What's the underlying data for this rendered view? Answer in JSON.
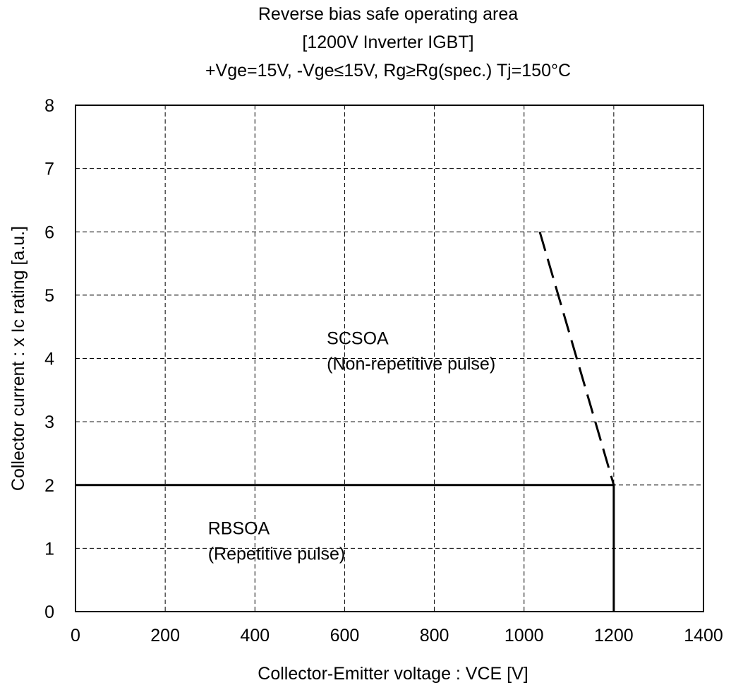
{
  "chart_data": {
    "type": "line",
    "title": "Reverse bias safe operating area",
    "subtitle": "[1200V Inverter IGBT]",
    "conditions": "+Vge=15V, -Vge≤15V, Rg≥Rg(spec.) Tj=150°C",
    "xlabel": "Collector-Emitter voltage : VCE [V]",
    "ylabel": "Collector current : x Ic rating [a.u.]",
    "xlim": [
      0,
      1400
    ],
    "ylim": [
      0,
      8
    ],
    "xticks": [
      "0",
      "200",
      "400",
      "600",
      "800",
      "1000",
      "1200",
      "1400"
    ],
    "yticks": [
      "0",
      "1",
      "2",
      "3",
      "4",
      "5",
      "6",
      "7",
      "8"
    ],
    "grid": true,
    "series": [
      {
        "style": "solid",
        "x": [
          0,
          1200,
          1200
        ],
        "y": [
          2,
          2,
          0
        ]
      },
      {
        "style": "dashed",
        "x": [
          1035,
          1200
        ],
        "y": [
          6,
          2
        ]
      }
    ],
    "annotations": [
      {
        "line1": "SCSOA",
        "line2": "(Non-repetitive pulse)",
        "x": 565,
        "y": 4.2
      },
      {
        "line1": "RBSOA",
        "line2": "(Repetitive pulse)",
        "x": 300,
        "y": 1.2
      }
    ]
  }
}
